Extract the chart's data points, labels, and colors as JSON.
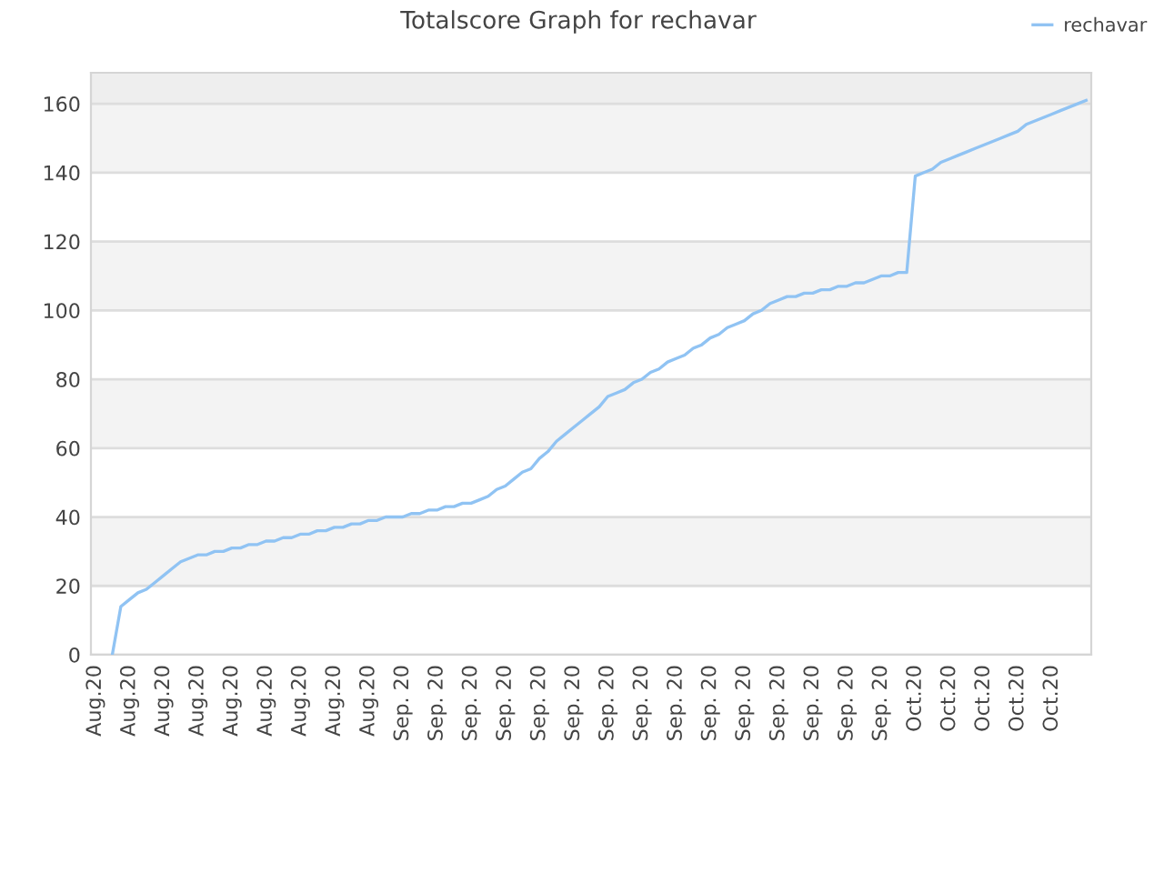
{
  "chart_data": {
    "type": "line",
    "title": "Totalscore Graph for rechavar",
    "categories": [
      "Aug.20",
      null,
      null,
      null,
      "Aug.20",
      null,
      null,
      null,
      "Aug.20",
      null,
      null,
      null,
      "Aug.20",
      null,
      null,
      null,
      "Aug.20",
      null,
      null,
      null,
      "Aug.20",
      null,
      null,
      null,
      "Aug.20",
      null,
      null,
      null,
      "Aug.20",
      null,
      null,
      null,
      "Aug.20",
      null,
      null,
      null,
      "Sep. 20",
      null,
      null,
      null,
      "Sep. 20",
      null,
      null,
      null,
      "Sep. 20",
      null,
      null,
      null,
      "Sep. 20",
      null,
      null,
      null,
      "Sep. 20",
      null,
      null,
      null,
      "Sep. 20",
      null,
      null,
      null,
      "Sep. 20",
      null,
      null,
      null,
      "Sep. 20",
      null,
      null,
      null,
      "Sep. 20",
      null,
      null,
      null,
      "Sep. 20",
      null,
      null,
      null,
      "Sep. 20",
      null,
      null,
      null,
      "Sep. 20",
      null,
      null,
      null,
      "Sep. 20",
      null,
      null,
      null,
      "Sep. 20",
      null,
      null,
      null,
      "Sep. 20",
      null,
      null,
      null,
      "Oct.20",
      null,
      null,
      null,
      "Oct.20",
      null,
      null,
      null,
      "Oct.20",
      null,
      null,
      null,
      "Oct.20",
      null,
      null,
      null,
      "Oct.20",
      null,
      null,
      null,
      null
    ],
    "series": [
      {
        "name": "rechavar",
        "color": "#90c3f3",
        "values": [
          null,
          null,
          0,
          14,
          16,
          18,
          19,
          21,
          23,
          25,
          27,
          28,
          29,
          29,
          30,
          30,
          31,
          31,
          32,
          32,
          33,
          33,
          34,
          34,
          35,
          35,
          36,
          36,
          37,
          37,
          38,
          38,
          39,
          39,
          40,
          40,
          40,
          41,
          41,
          42,
          42,
          43,
          43,
          44,
          44,
          45,
          46,
          48,
          49,
          51,
          53,
          54,
          57,
          59,
          62,
          64,
          66,
          68,
          70,
          72,
          75,
          76,
          77,
          79,
          80,
          82,
          83,
          85,
          86,
          87,
          89,
          90,
          92,
          93,
          95,
          96,
          97,
          99,
          100,
          102,
          103,
          104,
          104,
          105,
          105,
          106,
          106,
          107,
          107,
          108,
          108,
          109,
          110,
          110,
          111,
          111,
          139,
          140,
          141,
          143,
          144,
          145,
          146,
          147,
          148,
          149,
          150,
          151,
          152,
          154,
          155,
          156,
          157,
          158,
          159,
          160,
          161
        ]
      }
    ],
    "ylim": [
      0,
      169
    ],
    "yticks": [
      0,
      20,
      40,
      60,
      80,
      100,
      120,
      140,
      160
    ],
    "bands": [
      {
        "axis": "y",
        "from": 20,
        "to": 40,
        "color": "#f3f3f3"
      },
      {
        "axis": "y",
        "from": 60,
        "to": 80,
        "color": "#f3f3f3"
      },
      {
        "axis": "y",
        "from": 100,
        "to": 120,
        "color": "#f3f3f3"
      },
      {
        "axis": "y",
        "from": 140,
        "to": 160,
        "color": "#f3f3f3"
      },
      {
        "axis": "y",
        "from": 160,
        "to": 169,
        "color": "#eeeeee"
      }
    ],
    "grid": "y",
    "legend": "top right",
    "marker": "none",
    "line_style": "solid"
  }
}
